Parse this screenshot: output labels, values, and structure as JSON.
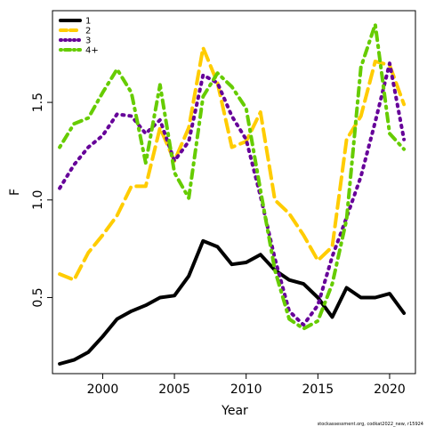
{
  "chart_data": {
    "type": "line",
    "title": "",
    "xlabel": "Year",
    "ylabel": "F",
    "xlim": [
      1996.5,
      2021.8
    ],
    "ylim": [
      0.11,
      1.97
    ],
    "xticks": [
      2000,
      2005,
      2010,
      2015,
      2020
    ],
    "yticks": [
      0.5,
      1.0,
      1.5
    ],
    "ytick_labels": [
      "0.5",
      "1.0",
      "1.5"
    ],
    "grid": false,
    "legend_position": "top-left",
    "x": [
      1997,
      1998,
      1999,
      2000,
      2001,
      2002,
      2003,
      2004,
      2005,
      2006,
      2007,
      2008,
      2009,
      2010,
      2011,
      2012,
      2013,
      2014,
      2015,
      2016,
      2017,
      2018,
      2019,
      2020,
      2021
    ],
    "series": [
      {
        "name": "1",
        "color": "#000000",
        "dash": "solid",
        "values": [
          0.16,
          0.18,
          0.22,
          0.3,
          0.39,
          0.43,
          0.46,
          0.5,
          0.51,
          0.61,
          0.79,
          0.76,
          0.67,
          0.68,
          0.72,
          0.64,
          0.59,
          0.57,
          0.5,
          0.4,
          0.55,
          0.5,
          0.5,
          0.52,
          0.42
        ]
      },
      {
        "name": "2",
        "color": "#FFCC00",
        "dash": "longdash",
        "values": [
          0.62,
          0.59,
          0.73,
          0.82,
          0.92,
          1.07,
          1.07,
          1.37,
          1.2,
          1.37,
          1.78,
          1.6,
          1.27,
          1.3,
          1.45,
          1.0,
          0.93,
          0.82,
          0.69,
          0.76,
          1.31,
          1.43,
          1.71,
          1.69,
          1.49
        ]
      },
      {
        "name": "3",
        "color": "#660099",
        "dash": "dotted",
        "values": [
          1.06,
          1.18,
          1.27,
          1.33,
          1.44,
          1.43,
          1.34,
          1.41,
          1.2,
          1.3,
          1.64,
          1.6,
          1.43,
          1.31,
          1.02,
          0.7,
          0.43,
          0.36,
          0.46,
          0.71,
          0.91,
          1.12,
          1.4,
          1.7,
          1.31
        ]
      },
      {
        "name": "4+",
        "color": "#66CC00",
        "dash": "dotdash",
        "values": [
          1.27,
          1.39,
          1.42,
          1.55,
          1.67,
          1.55,
          1.19,
          1.59,
          1.14,
          1.01,
          1.53,
          1.65,
          1.58,
          1.47,
          1.05,
          0.64,
          0.39,
          0.34,
          0.38,
          0.57,
          0.9,
          1.68,
          1.9,
          1.34,
          1.26
        ]
      }
    ]
  },
  "footer_text": "stockassessment.org, codkat2022_new, r15924"
}
